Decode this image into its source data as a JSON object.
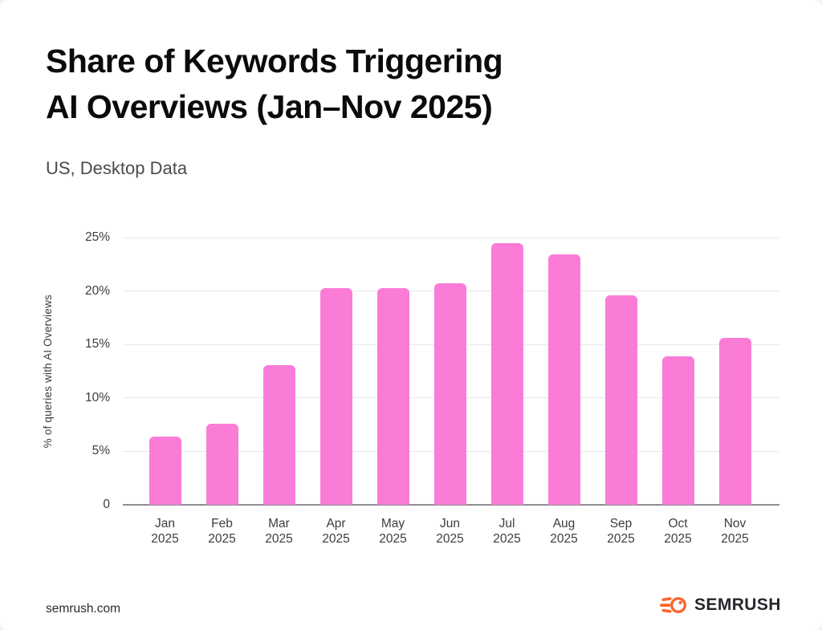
{
  "header": {
    "title": "Share of Keywords Triggering\nAI Overviews (Jan–Nov 2025)",
    "subtitle": "US, Desktop Data"
  },
  "chart_data": {
    "type": "bar",
    "title": "Share of Keywords Triggering AI Overviews (Jan–Nov 2025)",
    "subtitle": "US, Desktop Data",
    "categories": [
      "Jan 2025",
      "Feb 2025",
      "Mar 2025",
      "Apr 2025",
      "May 2025",
      "Jun 2025",
      "Jul 2025",
      "Aug 2025",
      "Sep 2025",
      "Oct 2025",
      "Nov 2025"
    ],
    "values": [
      6.4,
      7.6,
      13.1,
      20.3,
      20.3,
      20.7,
      24.5,
      23.4,
      19.6,
      13.9,
      15.6
    ],
    "xlabel": "",
    "ylabel": "% of queries with AI Overviews",
    "ylim": [
      0,
      25
    ],
    "yticks": [
      {
        "value": 0,
        "label": "0"
      },
      {
        "value": 5,
        "label": "5%"
      },
      {
        "value": 10,
        "label": "10%"
      },
      {
        "value": 15,
        "label": "15%"
      },
      {
        "value": 20,
        "label": "20%"
      },
      {
        "value": 25,
        "label": "25%"
      }
    ],
    "grid": "horizontal",
    "legend": "none"
  },
  "colors": {
    "bar": "#FA7CD6",
    "gridline": "#e9e9ec",
    "baseline": "#8e8e93",
    "brand_orange": "#FF642D",
    "title_text": "#0b0b0d",
    "background": "#ffffff"
  },
  "footer": {
    "site": "semrush.com",
    "brand": "SEMRUSH"
  }
}
